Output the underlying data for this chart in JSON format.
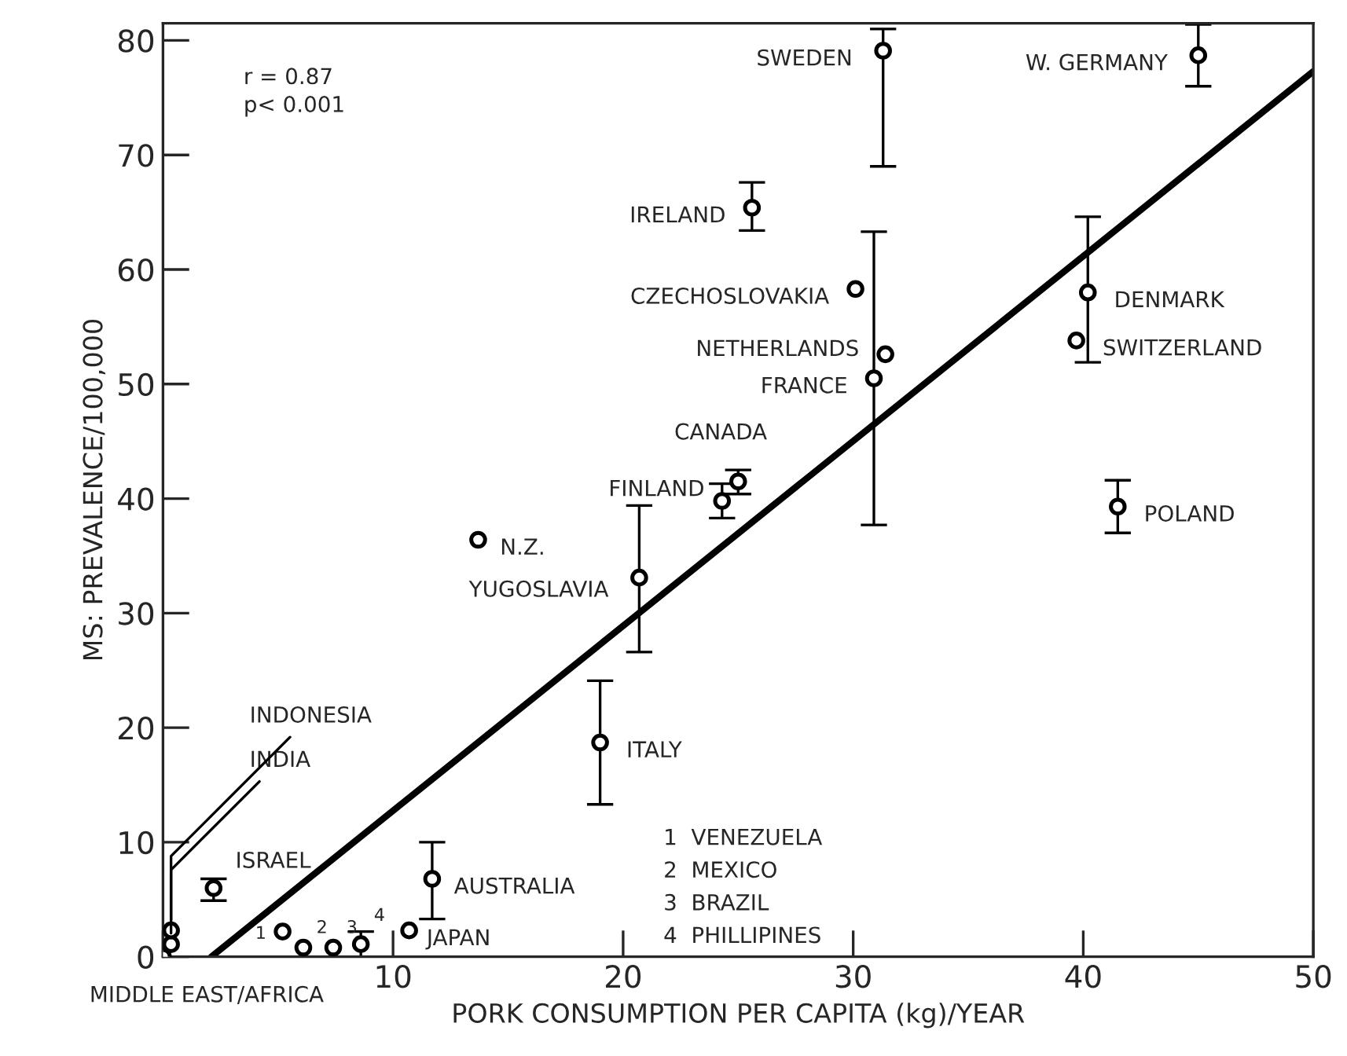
{
  "chart_data": {
    "type": "scatter",
    "xlabel": "PORK CONSUMPTION PER CAPITA (kg)/YEAR",
    "ylabel": "MS: PREVALENCE/100,000",
    "xlim": [
      0,
      50
    ],
    "ylim": [
      0,
      81.5
    ],
    "xticks": [
      {
        "value": 0,
        "label": null
      },
      10,
      20,
      30,
      40,
      50
    ],
    "yticks": [
      0,
      10,
      20,
      30,
      40,
      50,
      60,
      70,
      80
    ],
    "grid": false,
    "marker": "circle",
    "series": [
      {
        "type": "scatter",
        "color": "#000000",
        "x": [
          0,
          0.35,
          0.35,
          2.2,
          5.2,
          6.1,
          7.4,
          8.6,
          10.7,
          11.7,
          13.7,
          20.7,
          19.0,
          24.3,
          25.0,
          41.5,
          31.3,
          45.0,
          25.6,
          30.1,
          31.4,
          30.9,
          40.2,
          39.7
        ],
        "values": [
          0,
          1.1,
          2.3,
          6.0,
          2.2,
          0.8,
          0.8,
          1.1,
          2.3,
          6.8,
          36.4,
          33.1,
          18.7,
          39.8,
          41.5,
          39.3,
          79.1,
          78.7,
          65.4,
          58.3,
          52.6,
          50.5,
          58.0,
          53.8
        ],
        "errors": [
          null,
          null,
          null,
          [
            4.9,
            6.8
          ],
          null,
          null,
          null,
          [
            0,
            2.2
          ],
          null,
          [
            3.3,
            10.0
          ],
          null,
          [
            26.6,
            39.4
          ],
          [
            13.3,
            24.1
          ],
          [
            38.3,
            41.3
          ],
          [
            40.4,
            42.5
          ],
          [
            37.0,
            41.6
          ],
          [
            69.0,
            81.0
          ],
          [
            76.0,
            81.4
          ],
          [
            63.4,
            67.6
          ],
          null,
          null,
          [
            37.7,
            63.3
          ],
          [
            51.9,
            64.6
          ],
          null
        ]
      },
      {
        "type": "line",
        "color": "#000000",
        "marker": "none",
        "line_style": "solid",
        "x": [
          2.1,
          50
        ],
        "values": [
          0,
          77.3
        ]
      }
    ],
    "annotations": [
      {
        "text": "MIDDLE EAST/AFRICA",
        "x": 0,
        "y": 0
      },
      {
        "text": "INDIA",
        "x": 0.35,
        "y": 1.1
      },
      {
        "text": "INDONESIA",
        "x": 0.35,
        "y": 2.3
      },
      {
        "text": "ISRAEL",
        "x": 2.2,
        "y": 6.0
      },
      {
        "text": "1",
        "x": 5.2,
        "y": 2.2
      },
      {
        "text": "2",
        "x": 6.1,
        "y": 0.8
      },
      {
        "text": "3",
        "x": 7.4,
        "y": 0.8
      },
      {
        "text": "4",
        "x": 8.6,
        "y": 1.1
      },
      {
        "text": "JAPAN",
        "x": 10.7,
        "y": 2.3
      },
      {
        "text": "AUSTRALIA",
        "x": 11.7,
        "y": 6.8
      },
      {
        "text": "N.Z.",
        "x": 13.7,
        "y": 36.4
      },
      {
        "text": "YUGOSLAVIA",
        "x": 20.7,
        "y": 33.1
      },
      {
        "text": "ITALY",
        "x": 19.0,
        "y": 18.7
      },
      {
        "text": "FINLAND",
        "x": 24.3,
        "y": 39.8
      },
      {
        "text": "CANADA",
        "x": 25.0,
        "y": 41.5
      },
      {
        "text": "POLAND",
        "x": 41.5,
        "y": 39.3
      },
      {
        "text": "SWEDEN",
        "x": 31.3,
        "y": 79.1
      },
      {
        "text": "W. GERMANY",
        "x": 45.0,
        "y": 78.7
      },
      {
        "text": "IRELAND",
        "x": 25.6,
        "y": 65.4
      },
      {
        "text": "CZECHOSLOVAKIA",
        "x": 30.1,
        "y": 58.3
      },
      {
        "text": "NETHERLANDS",
        "x": 31.4,
        "y": 52.6
      },
      {
        "text": "FRANCE",
        "x": 30.9,
        "y": 50.5
      },
      {
        "text": "DENMARK",
        "x": 40.2,
        "y": 58.0
      },
      {
        "text": "SWITZERLAND",
        "x": 39.7,
        "y": 53.8
      },
      "r = 0.87",
      "p< 0.001",
      "1  VENEZUELA",
      "2  MEXICO",
      "3  BRAZIL",
      "4  PHILLIPINES"
    ]
  }
}
